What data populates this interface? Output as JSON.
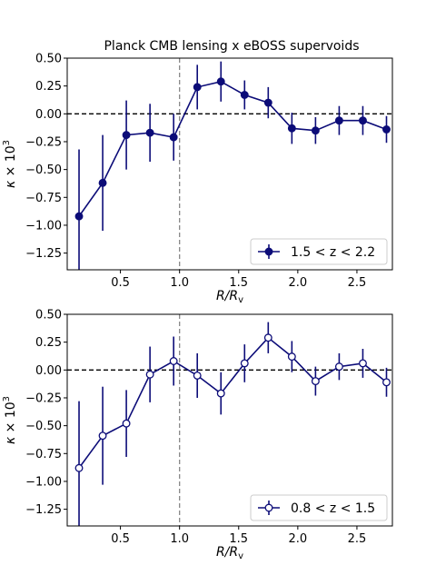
{
  "chart_data": [
    {
      "type": "scatter",
      "title": "Planck CMB lensing x eBOSS supervoids",
      "xlabel": "R/R_v",
      "ylabel": "κ × 10^3",
      "xlim": [
        0.05,
        2.8
      ],
      "ylim": [
        -1.4,
        0.5
      ],
      "xticks": [
        0.5,
        1.0,
        1.5,
        2.0,
        2.5
      ],
      "xtick_labels": [
        "0.5",
        "1.0",
        "1.5",
        "2.0",
        "2.5"
      ],
      "yticks": [
        0.5,
        0.25,
        0.0,
        -0.25,
        -0.5,
        -0.75,
        -1.0,
        -1.25
      ],
      "ytick_labels": [
        "0.50",
        "0.25",
        "0.00",
        "−0.25",
        "−0.50",
        "−0.75",
        "−1.00",
        "−1.25"
      ],
      "show_xtick_labels": true,
      "hline": 0.0,
      "vline": 1.0,
      "legend_position": "lower-right",
      "series": [
        {
          "name": "1.5 < z < 2.2",
          "marker": "filled",
          "color": "#0c0c78",
          "x": [
            0.15,
            0.35,
            0.55,
            0.75,
            0.95,
            1.15,
            1.35,
            1.55,
            1.75,
            1.95,
            2.15,
            2.35,
            2.55,
            2.75
          ],
          "y": [
            -0.92,
            -0.62,
            -0.19,
            -0.17,
            -0.21,
            0.24,
            0.29,
            0.17,
            0.1,
            -0.13,
            -0.15,
            -0.06,
            -0.06,
            -0.14
          ],
          "yerr": [
            0.6,
            0.43,
            0.31,
            0.26,
            0.21,
            0.2,
            0.18,
            0.13,
            0.14,
            0.14,
            0.12,
            0.13,
            0.13,
            0.12
          ]
        }
      ]
    },
    {
      "type": "scatter",
      "title": "",
      "xlabel": "R/R_v",
      "ylabel": "κ × 10^3",
      "xlim": [
        0.05,
        2.8
      ],
      "ylim": [
        -1.4,
        0.5
      ],
      "xticks": [
        0.5,
        1.0,
        1.5,
        2.0,
        2.5
      ],
      "xtick_labels": [
        "0.5",
        "1.0",
        "1.5",
        "2.0",
        "2.5"
      ],
      "yticks": [
        0.5,
        0.25,
        0.0,
        -0.25,
        -0.5,
        -0.75,
        -1.0,
        -1.25
      ],
      "ytick_labels": [
        "0.50",
        "0.25",
        "0.00",
        "−0.25",
        "−0.50",
        "−0.75",
        "−1.00",
        "−1.25"
      ],
      "show_xtick_labels": true,
      "hline": 0.0,
      "vline": 1.0,
      "legend_position": "lower-right",
      "series": [
        {
          "name": "0.8 < z < 1.5",
          "marker": "open",
          "color": "#0c0c78",
          "x": [
            0.15,
            0.35,
            0.55,
            0.75,
            0.95,
            1.15,
            1.35,
            1.55,
            1.75,
            1.95,
            2.15,
            2.35,
            2.55,
            2.75
          ],
          "y": [
            -0.88,
            -0.59,
            -0.48,
            -0.04,
            0.08,
            -0.05,
            -0.21,
            0.06,
            0.29,
            0.12,
            -0.1,
            0.03,
            0.06,
            -0.11
          ],
          "yerr": [
            0.6,
            0.44,
            0.3,
            0.25,
            0.22,
            0.2,
            0.19,
            0.17,
            0.14,
            0.14,
            0.13,
            0.12,
            0.13,
            0.13
          ]
        }
      ]
    }
  ]
}
